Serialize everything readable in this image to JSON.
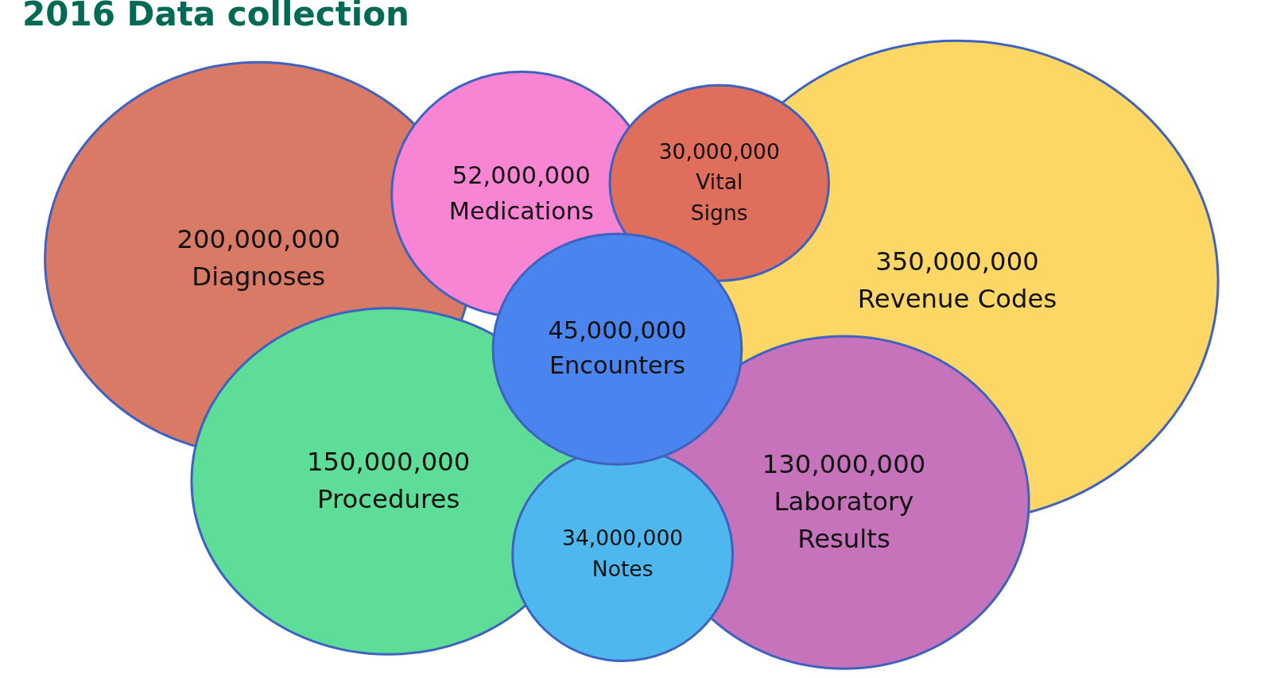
{
  "chart_data": {
    "type": "other",
    "title": "2016 Data collection",
    "categories": [
      "Diagnoses",
      "Revenue Codes",
      "Medications",
      "Vital Signs",
      "Procedures",
      "Laboratory Results",
      "Notes",
      "Encounters"
    ],
    "values": [
      200000000,
      350000000,
      52000000,
      30000000,
      150000000,
      130000000,
      34000000,
      45000000
    ],
    "value_labels": [
      "200,000,000",
      "350,000,000",
      "52,000,000",
      "30,000,000",
      "150,000,000",
      "130,000,000",
      "34,000,000",
      "45,000,000"
    ],
    "colors": [
      "#d97a66",
      "#fdd766",
      "#f885d4",
      "#e06e5c",
      "#5ddd98",
      "#c673bc",
      "#4eb8ee",
      "#4a84ee"
    ]
  }
}
